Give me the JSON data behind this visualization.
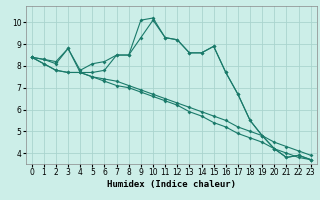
{
  "title": "",
  "xlabel": "Humidex (Indice chaleur)",
  "ylabel": "",
  "bg_color": "#cceee8",
  "grid_color": "#aad4ce",
  "line_color": "#1a7a6a",
  "xlim": [
    -0.5,
    23.5
  ],
  "ylim": [
    3.5,
    10.75
  ],
  "xticks": [
    0,
    1,
    2,
    3,
    4,
    5,
    6,
    7,
    8,
    9,
    10,
    11,
    12,
    13,
    14,
    15,
    16,
    17,
    18,
    19,
    20,
    21,
    22,
    23
  ],
  "yticks": [
    4,
    5,
    6,
    7,
    8,
    9,
    10
  ],
  "series": [
    [
      8.4,
      8.3,
      8.2,
      8.8,
      7.8,
      8.1,
      8.2,
      8.5,
      8.5,
      10.1,
      10.2,
      9.3,
      9.2,
      8.6,
      8.6,
      8.9,
      7.7,
      6.7,
      5.5,
      4.8,
      4.2,
      3.8,
      3.9,
      3.7
    ],
    [
      8.4,
      8.3,
      8.1,
      8.8,
      7.7,
      7.7,
      7.8,
      8.5,
      8.5,
      9.3,
      10.1,
      9.3,
      9.2,
      8.6,
      8.6,
      8.9,
      7.7,
      6.7,
      5.5,
      4.8,
      4.2,
      3.8,
      3.9,
      3.7
    ],
    [
      8.4,
      8.1,
      7.8,
      7.7,
      7.7,
      7.5,
      7.4,
      7.3,
      7.1,
      6.9,
      6.7,
      6.5,
      6.3,
      6.1,
      5.9,
      5.7,
      5.5,
      5.2,
      5.0,
      4.8,
      4.5,
      4.3,
      4.1,
      3.9
    ],
    [
      8.4,
      8.1,
      7.8,
      7.7,
      7.7,
      7.5,
      7.3,
      7.1,
      7.0,
      6.8,
      6.6,
      6.4,
      6.2,
      5.9,
      5.7,
      5.4,
      5.2,
      4.9,
      4.7,
      4.5,
      4.2,
      4.0,
      3.8,
      3.7
    ]
  ],
  "xlabel_fontsize": 6.5,
  "tick_fontsize": 5.5
}
